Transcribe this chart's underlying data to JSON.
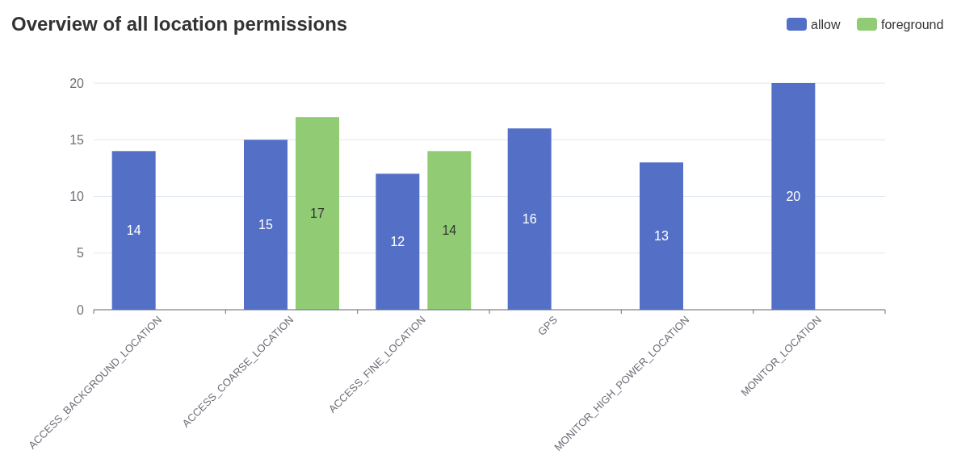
{
  "chart_data": {
    "type": "bar",
    "title": "Overview of all location permissions",
    "categories": [
      "ACCESS_BACKGROUND_LOCATION",
      "ACCESS_COARSE_LOCATION",
      "ACCESS_FINE_LOCATION",
      "GPS",
      "MONITOR_HIGH_POWER_LOCATION",
      "MONITOR_LOCATION"
    ],
    "series": [
      {
        "name": "allow",
        "color": "#5470c6",
        "values": [
          14,
          15,
          12,
          16,
          13,
          20
        ]
      },
      {
        "name": "foreground",
        "color": "#91cc75",
        "values": [
          null,
          17,
          14,
          null,
          null,
          null
        ]
      }
    ],
    "ylim": [
      0,
      20
    ],
    "yticks": [
      0,
      5,
      10,
      15,
      20
    ],
    "grid": "y",
    "legend": "top right",
    "data_labels": true
  }
}
